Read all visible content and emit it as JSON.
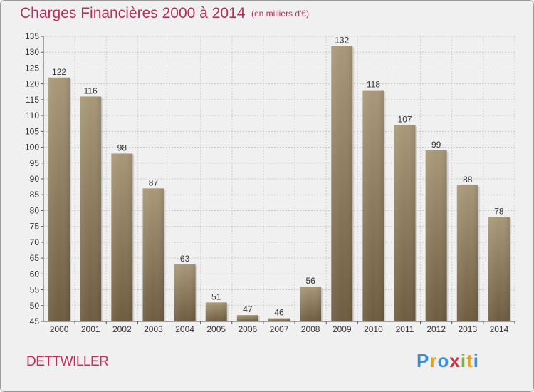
{
  "title": "Charges Financières 2000 à 2014",
  "subtitle": "(en milliers d'€)",
  "commune": "DETTWILLER",
  "logo": {
    "letters": [
      "P",
      "r",
      "o",
      "x",
      "i",
      "t",
      "i"
    ],
    "colors": [
      "#3a8fd0",
      "#e8a020",
      "#3a8fd0",
      "#d03040",
      "#78b828",
      "#e8a020",
      "#3a8fd0"
    ]
  },
  "colors": {
    "bar_light": "#a89878",
    "bar_dark": "#6e5c40",
    "text_accent": "#b0305a"
  },
  "chart_data": {
    "type": "bar",
    "categories": [
      "2000",
      "2001",
      "2002",
      "2003",
      "2004",
      "2005",
      "2006",
      "2007",
      "2008",
      "2009",
      "2010",
      "2011",
      "2012",
      "2013",
      "2014"
    ],
    "values": [
      122,
      116,
      98,
      87,
      63,
      51,
      47,
      46,
      56,
      132,
      118,
      107,
      99,
      88,
      78
    ],
    "data_labels": [
      "122",
      "116",
      "98",
      "87",
      "63",
      "51",
      "47",
      "46",
      "56",
      "132",
      "118",
      "107",
      "99",
      "88",
      "78"
    ],
    "ylim": [
      45,
      135
    ],
    "yticks": [
      "45",
      "50",
      "55",
      "60",
      "65",
      "70",
      "75",
      "80",
      "85",
      "90",
      "95",
      "100",
      "105",
      "110",
      "115",
      "120",
      "125",
      "130",
      "135"
    ],
    "grid": true
  }
}
